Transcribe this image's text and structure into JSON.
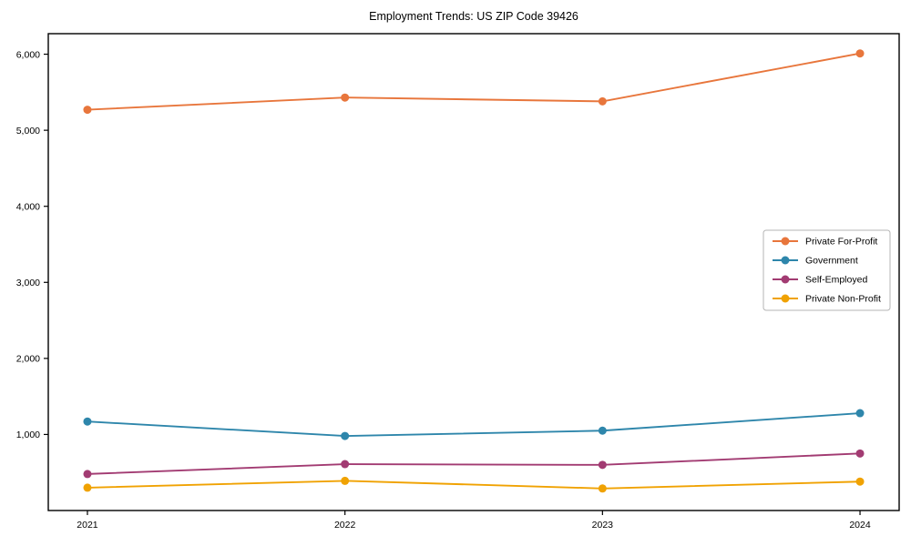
{
  "chart_data": {
    "type": "line",
    "title": "Employment Trends: US ZIP Code 39426",
    "xlabel": "",
    "ylabel": "",
    "x": [
      "2021",
      "2022",
      "2023",
      "2024"
    ],
    "series": [
      {
        "name": "Private For-Profit",
        "color": "#E8763C",
        "values": [
          5270,
          5430,
          5380,
          6010
        ]
      },
      {
        "name": "Government",
        "color": "#2E86AB",
        "values": [
          1170,
          980,
          1050,
          1280
        ]
      },
      {
        "name": "Self-Employed",
        "color": "#A23B72",
        "values": [
          480,
          610,
          600,
          750
        ]
      },
      {
        "name": "Private Non-Profit",
        "color": "#F0A202",
        "values": [
          300,
          390,
          290,
          380
        ]
      }
    ],
    "ylim": [
      0,
      6270
    ],
    "yticks": [
      1000,
      2000,
      3000,
      4000,
      5000,
      6000
    ],
    "ytick_labels": [
      "1,000",
      "2,000",
      "3,000",
      "4,000",
      "5,000",
      "6,000"
    ],
    "grid": false,
    "legend_position": "right-middle",
    "marker": "circle",
    "axis_color": "#000000",
    "legend_border_color": "#b5b5b5",
    "background": "#ffffff"
  }
}
